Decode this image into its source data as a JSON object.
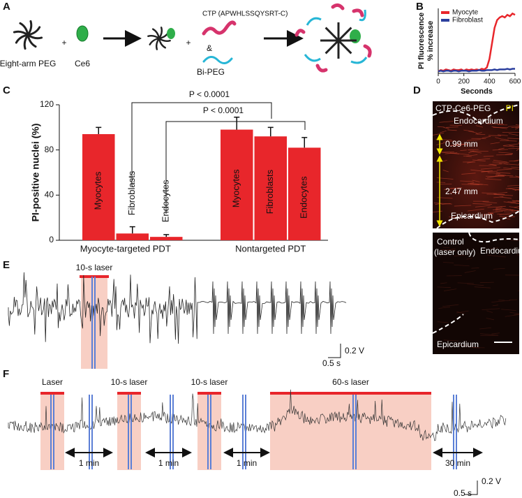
{
  "panel_labels": [
    "A",
    "B",
    "C",
    "D",
    "E",
    "F"
  ],
  "panel_a": {
    "peg_label": "Eight-arm PEG",
    "plus_1": "+",
    "ce6_label": "Ce6",
    "plus_2": "+",
    "ctp_label": "CTP (APWHLSSQYSRT-C)",
    "ampersand": "&",
    "bipeg_label": "Bi-PEG"
  },
  "chart_data": [
    {
      "type": "line",
      "xlabel": "Seconds",
      "ylabel": [
        "PI fluorescence",
        "% increase"
      ],
      "x": [
        0,
        20,
        40,
        60,
        80,
        100,
        120,
        140,
        160,
        180,
        200,
        220,
        240,
        260,
        280,
        300,
        320,
        340,
        360,
        380,
        400,
        420,
        440,
        460,
        480,
        500,
        520,
        540,
        560,
        580,
        600
      ],
      "series": [
        {
          "name": "Myocyte",
          "color": "#e8262b",
          "values": [
            3,
            5,
            4,
            6,
            5,
            4,
            6,
            5,
            5,
            6,
            4,
            6,
            5,
            6,
            5,
            6,
            5,
            7,
            6,
            9,
            22,
            46,
            70,
            82,
            86,
            88,
            86,
            90,
            88,
            92,
            90
          ]
        },
        {
          "name": "Fibroblast",
          "color": "#2b3f9e",
          "values": [
            3,
            4,
            3,
            4,
            4,
            3,
            4,
            4,
            3,
            4,
            4,
            4,
            3,
            4,
            4,
            4,
            5,
            4,
            4,
            5,
            5,
            5,
            6,
            5,
            6,
            6,
            6,
            7,
            6,
            7,
            7
          ]
        }
      ],
      "xlim": [
        0,
        600
      ],
      "xticks": [
        0,
        200,
        400,
        600
      ],
      "ylim": [
        0,
        100
      ],
      "legend": "upper left"
    },
    {
      "type": "bar",
      "ylabel": "PI-positive nuclei (%)",
      "color": "#e8262b",
      "groups": [
        {
          "name": "Myocyte-targeted PDT",
          "categories": [
            "Myocytes",
            "Fibroblasts",
            "Endocytes"
          ],
          "values": [
            94,
            6,
            3
          ],
          "errors": [
            6,
            6,
            2
          ]
        },
        {
          "name": "Nontargeted PDT",
          "categories": [
            "Myocytes",
            "Fibroblasts",
            "Endocytes"
          ],
          "values": [
            98,
            92,
            82
          ],
          "errors": [
            11,
            8,
            9
          ]
        }
      ],
      "annotations": [
        "P < 0.0001",
        "P < 0.0001"
      ],
      "ylim": [
        0,
        120
      ],
      "yticks": [
        0,
        40,
        80,
        120
      ]
    }
  ],
  "panel_d": {
    "top": {
      "title": "CTP-Ce6-PEG",
      "stain": "PI",
      "upper_label": "Endocardium",
      "upper_thickness": "0.99 mm",
      "lower_thickness": "2.47 mm",
      "lower_label": "Epicardium"
    },
    "bottom": {
      "title": [
        "Control",
        "(laser only)"
      ],
      "upper_label": "Endocardium",
      "lower_label": "Epicardium"
    }
  },
  "panel_e": {
    "laser_label": "10-s laser",
    "scale_v": "0.2 V",
    "scale_t": "0.5 s"
  },
  "panel_f": {
    "laser_labels": [
      "Laser",
      "10-s laser",
      "10-s laser",
      "60-s laser"
    ],
    "intervals": [
      "1 min",
      "1 min",
      "1 min",
      "30 min"
    ],
    "scale_v": "0.2 V",
    "scale_t": "0.5 s"
  }
}
